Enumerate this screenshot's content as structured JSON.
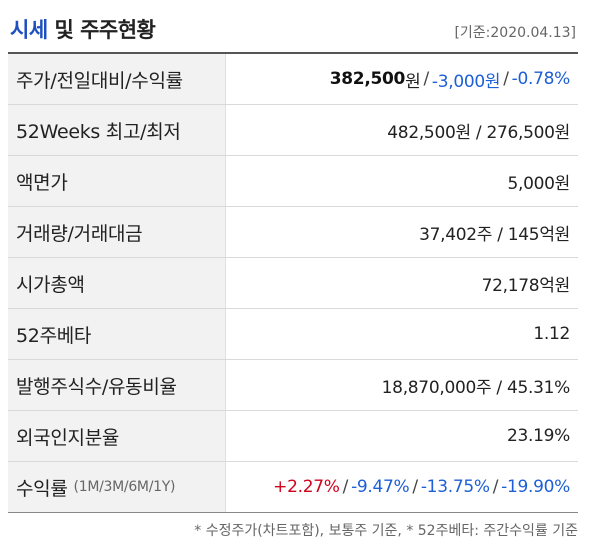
{
  "header": {
    "title_part1": "시세",
    "title_part2": "및 주주현황",
    "date": "[기준:2020.04.13]"
  },
  "rows": {
    "price": {
      "label": "주가/전일대비/수익률",
      "price": "382,500",
      "unit": "원",
      "change": "-3,000원",
      "rate": "-0.78%"
    },
    "high_low": {
      "label": "52Weeks 최고/최저",
      "value": "482,500원 / 276,500원"
    },
    "face_value": {
      "label": "액면가",
      "value": "5,000원"
    },
    "volume": {
      "label": "거래량/거래대금",
      "value": "37,402주 / 145억원"
    },
    "market_cap": {
      "label": "시가총액",
      "value": "72,178억원"
    },
    "beta": {
      "label": "52주베타",
      "value": "1.12"
    },
    "shares": {
      "label": "발행주식수/유동비율",
      "value": "18,870,000주 / 45.31%"
    },
    "foreign": {
      "label": "외국인지분율",
      "value": "23.19%"
    },
    "returns": {
      "label": "수익률",
      "sub": "(1M/3M/6M/1Y)",
      "m1": "+2.27%",
      "m3": "-9.47%",
      "m6": "-13.75%",
      "y1": "-19.90%"
    }
  },
  "footnote": "* 수정주가(차트포함), 보통주 기준, * 52주베타: 주간수익률 기준",
  "colors": {
    "accent": "#1d4fbf",
    "negative": "#1d5fd6",
    "positive": "#d0021b"
  }
}
